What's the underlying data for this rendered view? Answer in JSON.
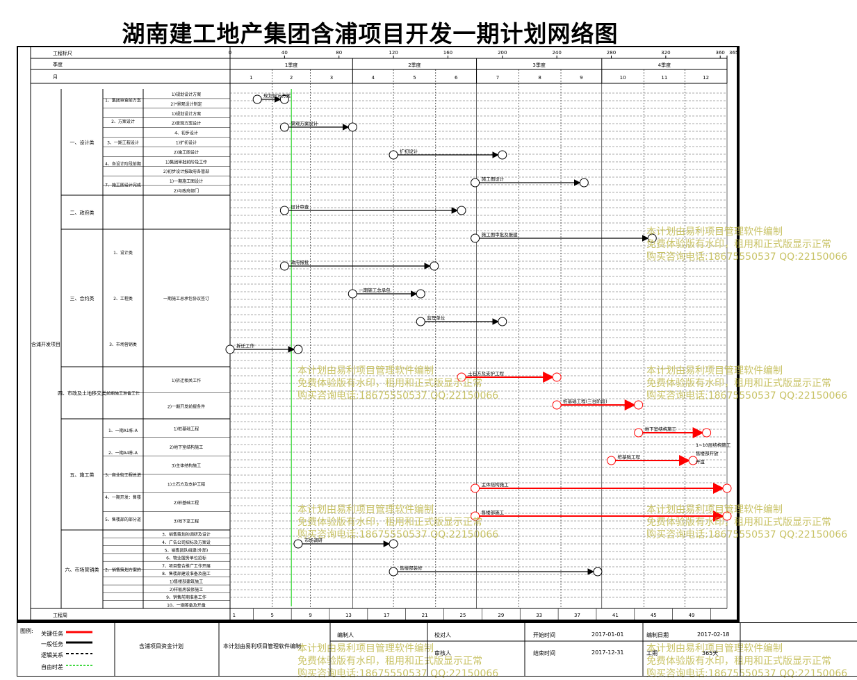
{
  "title": "湖南建工地产集团含浦项目开发一期计划网络图",
  "header": {
    "row_labels": [
      "工程标尺",
      "季度",
      "月"
    ],
    "day_ticks": [
      "0",
      "40",
      "80",
      "120",
      "160",
      "200",
      "240",
      "280",
      "320",
      "360",
      "365"
    ],
    "quarters": [
      "1季度",
      "2季度",
      "3季度",
      "4季度"
    ],
    "months": [
      "1",
      "2",
      "3",
      "4",
      "5",
      "6",
      "7",
      "8",
      "9",
      "10",
      "11",
      "12"
    ]
  },
  "footer_axis": {
    "label": "工程周",
    "weeks": [
      "1",
      "5",
      "9",
      "13",
      "17",
      "21",
      "25",
      "29",
      "33",
      "37",
      "41",
      "45",
      "49"
    ]
  },
  "left_tree": {
    "project": "含浦开发项目",
    "groups": [
      {
        "name": "一、设计类",
        "subs": [
          "1、集团审查前方案设计",
          "2、方案设计",
          "3、一期工程设计",
          "4、各设计阶段前期审批工作",
          "7、施工图设计完成后报建工作"
        ],
        "details": [
          "1)规划设计方案",
          "2)*景观设计制定",
          "1)规划设计方案",
          "2)景观方案设计",
          "4、初步设计",
          "1)扩初设计",
          "2)施工图设计",
          "1)集团审批前阶段工作",
          "2)初步设计报政府各管部门审查工作",
          "1)一期施工图设计",
          "2)与政府部门"
        ]
      },
      {
        "name": "二、政府类",
        "subs": [],
        "details": []
      },
      {
        "name": "三、合约类",
        "subs": [
          "1、设计类",
          "2、工程类",
          "3、市场营销类"
        ],
        "details": [
          "一期施工总承包协议签订"
        ]
      },
      {
        "name": "四、市政及土地移交类",
        "subs": [
          "前期施工准备工作"
        ],
        "details": [
          "1)拆迁相关工作",
          "2)一期开发前提条件"
        ]
      },
      {
        "name": "五、施工类",
        "subs": [
          "1、一期A1栋-A5栋工程计划",
          "2、一期A4栋-A5栋工程计划",
          "3、商业街工程总进度计划",
          "4、一期开发：售楼部(S1)施工",
          "5、售楼部的部分道路、护坡及地下管网施工"
        ],
        "details": [
          "1)桩基础工程",
          "2)地下室结构施工",
          "3)主体结构施工",
          "1)土石方及支护工程",
          "2)桩基础工程",
          "3)地下室工程"
        ]
      },
      {
        "name": "六、市场营销类",
        "subs": [
          "2、销售策划方案的初稿"
        ],
        "details": [
          "3、销售策划的调研及设计",
          "4、广告公司招标及方案设计",
          "5、销售团队组建(外部)",
          "6、物业服务单位招标",
          "7、项目整合推广工作开展",
          "8、售楼部建设准备及施工",
          "1)售楼部建筑施工",
          "2)样板房装修施工",
          "9、销售前期准备工作",
          "10、一期筹备及开盘"
        ]
      }
    ]
  },
  "tasks": [
    {
      "label": "规划设计方案",
      "start": 20,
      "end": 40,
      "critical": false
    },
    {
      "label": "景观方案设计",
      "start": 40,
      "end": 90,
      "critical": false
    },
    {
      "label": "扩初设计",
      "start": 120,
      "end": 200,
      "critical": false
    },
    {
      "label": "施工图设计",
      "start": 180,
      "end": 260,
      "critical": false
    },
    {
      "label": "设计审查",
      "start": 40,
      "end": 170,
      "critical": false
    },
    {
      "label": "施工图审批及报建",
      "start": 180,
      "end": 310,
      "critical": false
    },
    {
      "label": "政府报批",
      "start": 40,
      "end": 150,
      "critical": false
    },
    {
      "label": "一期施工总承包",
      "start": 90,
      "end": 140,
      "critical": false
    },
    {
      "label": "监理单位",
      "start": 140,
      "end": 200,
      "critical": false
    },
    {
      "label": "拆迁工作",
      "start": 0,
      "end": 50,
      "critical": false
    },
    {
      "label": "土石方及支护工程",
      "start": 170,
      "end": 240,
      "critical": true
    },
    {
      "label": "桩基础工程(三台阶段)",
      "start": 240,
      "end": 300,
      "critical": true
    },
    {
      "label": "地下室结构施工",
      "start": 300,
      "end": 350,
      "critical": true
    },
    {
      "label": "桩基础工程",
      "start": 280,
      "end": 340,
      "critical": true
    },
    {
      "label": "主体结构施工",
      "start": 180,
      "end": 365,
      "critical": true
    },
    {
      "label": "售楼部施工",
      "start": 180,
      "end": 365,
      "critical": true
    },
    {
      "label": "市场调研",
      "start": 50,
      "end": 120,
      "critical": false
    },
    {
      "label": "售楼部装修",
      "start": 120,
      "end": 270,
      "critical": false
    }
  ],
  "notes": [
    "1~10层结构施工",
    "售楼部开放",
    "开盘"
  ],
  "watermark": {
    "line1": "本计划由易利项目管理软件编制",
    "line2": "免费体验版有水印，租用和正式版显示正常",
    "line3": "购买咨询电话:18675550537 QQ:22150066"
  },
  "legend": {
    "title": "图例:",
    "items": [
      "关键任务",
      "一般任务",
      "逻辑关系",
      "自由时差"
    ]
  },
  "info": {
    "chart_name": "含浦项目资金计划",
    "software": "本计划由易利项目管理软件编制",
    "labels": {
      "editor": "编制人",
      "reviewer": "校对人",
      "approver": "审核人",
      "start": "开始时间",
      "end": "结束时间",
      "made": "编制日期",
      "duration": "工期"
    },
    "start_date": "2017-01-01",
    "end_date": "2017-12-31",
    "made_date": "2017-02-18",
    "duration": "365天"
  },
  "colors": {
    "critical": "#ff0000",
    "normal": "#000000",
    "free_float": "#00cc00"
  }
}
